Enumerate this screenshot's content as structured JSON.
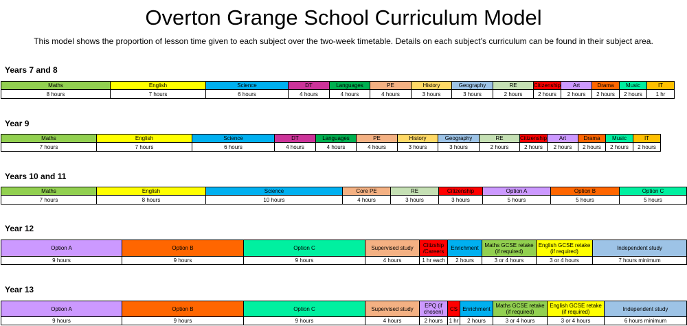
{
  "title": "Overton Grange School Curriculum Model",
  "subtitle": "This model shows the proportion of lesson time given to each subject over the two-week timetable. Details on each subject’s curriculum can be found in their subject area.",
  "sections": [
    {
      "label": "Years 7 and 8",
      "subjects": [
        {
          "name": "Maths",
          "hours": "8 hours",
          "color": "#92d050"
        },
        {
          "name": "English",
          "hours": "7 hours",
          "color": "#ffff00"
        },
        {
          "name": "Science",
          "hours": "6 hours",
          "color": "#00b0f0"
        },
        {
          "name": "DT",
          "hours": "4 hours",
          "color": "#cc3399"
        },
        {
          "name": "Languages",
          "hours": "4 hours",
          "color": "#00b050"
        },
        {
          "name": "PE",
          "hours": "4 hours",
          "color": "#f4b183"
        },
        {
          "name": "History",
          "hours": "3 hours",
          "color": "#ffd966"
        },
        {
          "name": "Geography",
          "hours": "3 hours",
          "color": "#9dc3e6"
        },
        {
          "name": "RE",
          "hours": "2 hours",
          "color": "#c5e0b4"
        },
        {
          "name": "Citizenship",
          "hours": "2 hours",
          "color": "#ff0000"
        },
        {
          "name": "Art",
          "hours": "2 hours",
          "color": "#cc99ff"
        },
        {
          "name": "Drama",
          "hours": "2 hours",
          "color": "#ff6600"
        },
        {
          "name": "Music",
          "hours": "2 hours",
          "color": "#00f0a0"
        },
        {
          "name": "IT",
          "hours": "1 hr",
          "color": "#ffc000"
        }
      ]
    },
    {
      "label": "Year 9",
      "subjects": [
        {
          "name": "Maths",
          "hours": "7 hours",
          "color": "#92d050"
        },
        {
          "name": "English",
          "hours": "7 hours",
          "color": "#ffff00"
        },
        {
          "name": "Science",
          "hours": "6 hours",
          "color": "#00b0f0"
        },
        {
          "name": "DT",
          "hours": "4 hours",
          "color": "#cc3399"
        },
        {
          "name": "Languages",
          "hours": "4 hours",
          "color": "#00b050"
        },
        {
          "name": "PE",
          "hours": "4 hours",
          "color": "#f4b183"
        },
        {
          "name": "History",
          "hours": "3 hours",
          "color": "#ffd966"
        },
        {
          "name": "Geography",
          "hours": "3 hours",
          "color": "#9dc3e6"
        },
        {
          "name": "RE",
          "hours": "2 hours",
          "color": "#c5e0b4"
        },
        {
          "name": "Citizenship",
          "hours": "2 hours",
          "color": "#ff0000"
        },
        {
          "name": "Art",
          "hours": "2 hours",
          "color": "#cc99ff"
        },
        {
          "name": "Drama",
          "hours": "2 hours",
          "color": "#ff6600"
        },
        {
          "name": "Music",
          "hours": "2 hours",
          "color": "#00f0a0"
        },
        {
          "name": "IT",
          "hours": "2 hours",
          "color": "#ffc000"
        }
      ]
    },
    {
      "label": "Years 10 and 11",
      "subjects": [
        {
          "name": "Maths",
          "hours": "7 hours",
          "color": "#92d050"
        },
        {
          "name": "English",
          "hours": "8 hours",
          "color": "#ffff00"
        },
        {
          "name": "Science",
          "hours": "10 hours",
          "color": "#00b0f0"
        },
        {
          "name": "Core PE",
          "hours": "4 hours",
          "color": "#f4b183"
        },
        {
          "name": "RE",
          "hours": "3 hours",
          "color": "#c5e0b4"
        },
        {
          "name": "Citizenship",
          "hours": "3 hours",
          "color": "#ff0000"
        },
        {
          "name": "Option A",
          "hours": "5 hours",
          "color": "#cc99ff"
        },
        {
          "name": "Option B",
          "hours": "5 hours",
          "color": "#ff6600"
        },
        {
          "name": "Option C",
          "hours": "5 hours",
          "color": "#00f0a0"
        }
      ]
    },
    {
      "label": "Year 12",
      "subjects": [
        {
          "name": "Option A",
          "hours": "9 hours",
          "color": "#cc99ff"
        },
        {
          "name": "Option B",
          "hours": "9 hours",
          "color": "#ff6600"
        },
        {
          "name": "Option C",
          "hours": "9 hours",
          "color": "#00f0a0"
        },
        {
          "name": "Supervised study",
          "hours": "4 hours",
          "color": "#f4b183"
        },
        {
          "name": "Citizship /Careers",
          "hours": "1 hr each",
          "color": "#ff0000"
        },
        {
          "name": "Enrichment",
          "hours": "2 hours",
          "color": "#00b0f0"
        },
        {
          "name": "Maths GCSE retake (if required)",
          "hours": "3 or 4 hours",
          "color": "#92d050"
        },
        {
          "name": "English GCSE retake (if required)",
          "hours": "3 or 4 hours",
          "color": "#ffff00"
        },
        {
          "name": "Independent study",
          "hours": "7 hours minimum",
          "color": "#9dc3e6"
        }
      ]
    },
    {
      "label": "Year 13",
      "subjects": [
        {
          "name": "Option A",
          "hours": "9 hours",
          "color": "#cc99ff"
        },
        {
          "name": "Option B",
          "hours": "9 hours",
          "color": "#ff6600"
        },
        {
          "name": "Option C",
          "hours": "9 hours",
          "color": "#00f0a0"
        },
        {
          "name": "Supervised study",
          "hours": "4 hours",
          "color": "#f4b183"
        },
        {
          "name": "EPQ (if chosen)",
          "hours": "2 hours",
          "color": "#cc99ff"
        },
        {
          "name": "CS",
          "hours": "1 hr",
          "color": "#ff0000"
        },
        {
          "name": "Enrichment",
          "hours": "2 hours",
          "color": "#00b0f0"
        },
        {
          "name": "Maths GCSE retake (if required)",
          "hours": "3 or 4 hours",
          "color": "#92d050"
        },
        {
          "name": "English GCSE retake (if required)",
          "hours": "3 or 4 hours",
          "color": "#ffff00"
        },
        {
          "name": "Independent study",
          "hours": "6 hours minimum",
          "color": "#9dc3e6"
        }
      ]
    }
  ]
}
